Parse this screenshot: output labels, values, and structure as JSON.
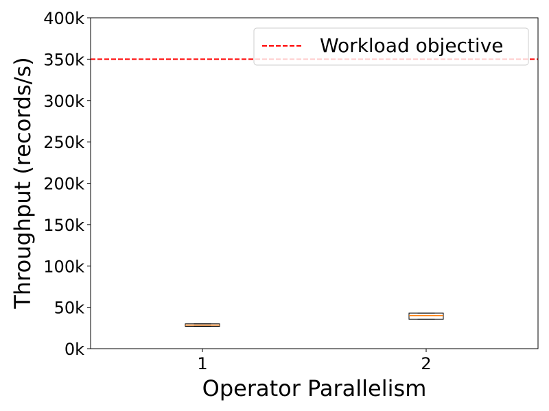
{
  "chart_data": {
    "type": "box",
    "xlabel": "Operator Parallelism",
    "ylabel": "Throughput (records/s)",
    "categories": [
      "1",
      "2"
    ],
    "ylim": [
      0,
      400000
    ],
    "yticks": [
      0,
      50000,
      100000,
      150000,
      200000,
      250000,
      300000,
      350000,
      400000
    ],
    "ytick_labels": [
      "0k",
      "50k",
      "100k",
      "150k",
      "200k",
      "250k",
      "300k",
      "350k",
      "400k"
    ],
    "boxes": [
      {
        "category": "1",
        "whisker_low": 27000,
        "q1": 27000,
        "median": 28500,
        "q3": 30000,
        "whisker_high": 30000
      },
      {
        "category": "2",
        "whisker_low": 35500,
        "q1": 35500,
        "median": 40000,
        "q3": 43000,
        "whisker_high": 43000
      }
    ],
    "reference_lines": [
      {
        "label": "Workload objective",
        "y": 350000,
        "color": "#ff0000",
        "style": "dashed"
      }
    ],
    "legend": {
      "position": "top-right",
      "entries": [
        "Workload objective"
      ]
    },
    "grid": false,
    "box_color": "#000000",
    "median_color": "#ff7f0e"
  }
}
